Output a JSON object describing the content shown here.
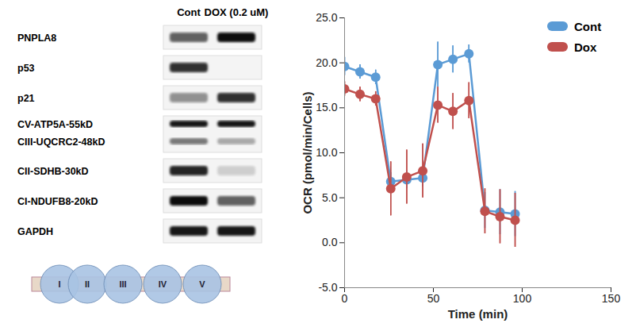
{
  "chart_data": {
    "type": "line",
    "xlabel": "Time (min)",
    "ylabel": "OCR (pmol/min/Cells)",
    "x": [
      0,
      8.7,
      17.5,
      26,
      35,
      44,
      52.5,
      61,
      70,
      79,
      87.5,
      96
    ],
    "series": [
      {
        "name": "Cont",
        "color": "#5B9BD5",
        "marker": "circle",
        "values": [
          19.6,
          19.0,
          18.4,
          6.8,
          7.0,
          7.2,
          19.8,
          20.4,
          21.0,
          3.6,
          3.4,
          3.2
        ],
        "errors": [
          1.0,
          0.8,
          0.8,
          1.0,
          1.0,
          1.0,
          2.5,
          1.5,
          1.0,
          2.0,
          2.5,
          2.5
        ]
      },
      {
        "name": "Dox",
        "color": "#C0504D",
        "marker": "circle",
        "values": [
          17.1,
          16.5,
          16.0,
          6.0,
          7.3,
          8.0,
          15.3,
          14.6,
          15.8,
          3.5,
          2.9,
          2.5
        ],
        "errors": [
          0.8,
          0.8,
          0.8,
          3.0,
          3.0,
          3.0,
          2.0,
          2.0,
          2.0,
          2.5,
          3.0,
          3.0
        ]
      }
    ],
    "xlim": [
      0,
      150
    ],
    "xticks": [
      0,
      50,
      100,
      150
    ],
    "ylim": [
      -5,
      25
    ],
    "yticks": [
      {
        "value": -5,
        "label": "-5.0"
      },
      {
        "value": 0,
        "label": "0.0"
      },
      {
        "value": 5,
        "label": "5.0"
      },
      {
        "value": 10,
        "label": "10.0"
      },
      {
        "value": 15,
        "label": "15.0"
      },
      {
        "value": 20,
        "label": "20.0"
      },
      {
        "value": 25,
        "label": "25.0"
      }
    ],
    "grid": false,
    "legend": "top-right"
  },
  "western_blot": {
    "lanes": [
      "Cont",
      "DOX (0.2 uM)"
    ],
    "panels": [
      {
        "labels": [
          "PNPLA8"
        ],
        "intensity": [
          [
            0.6,
            0.95
          ]
        ]
      },
      {
        "labels": [
          "p53"
        ],
        "intensity": [
          [
            0.8,
            0.0
          ]
        ]
      },
      {
        "labels": [
          "p21"
        ],
        "intensity": [
          [
            0.4,
            0.8
          ]
        ]
      },
      {
        "labels": [
          "CV-ATP5A-55kD",
          "CIII-UQCRC2-48kD"
        ],
        "intensity": [
          [
            0.9,
            0.9
          ],
          [
            0.5,
            0.3
          ]
        ]
      },
      {
        "labels": [
          "CII-SDHB-30kD"
        ],
        "intensity": [
          [
            0.85,
            0.15
          ]
        ]
      },
      {
        "labels": [
          "CI-NDUFB8-20kD"
        ],
        "intensity": [
          [
            0.95,
            0.6
          ]
        ]
      },
      {
        "labels": [
          "GAPDH"
        ],
        "intensity": [
          [
            0.9,
            0.9
          ]
        ]
      }
    ],
    "complexes": [
      "I",
      "II",
      "III",
      "IV",
      "V"
    ]
  }
}
